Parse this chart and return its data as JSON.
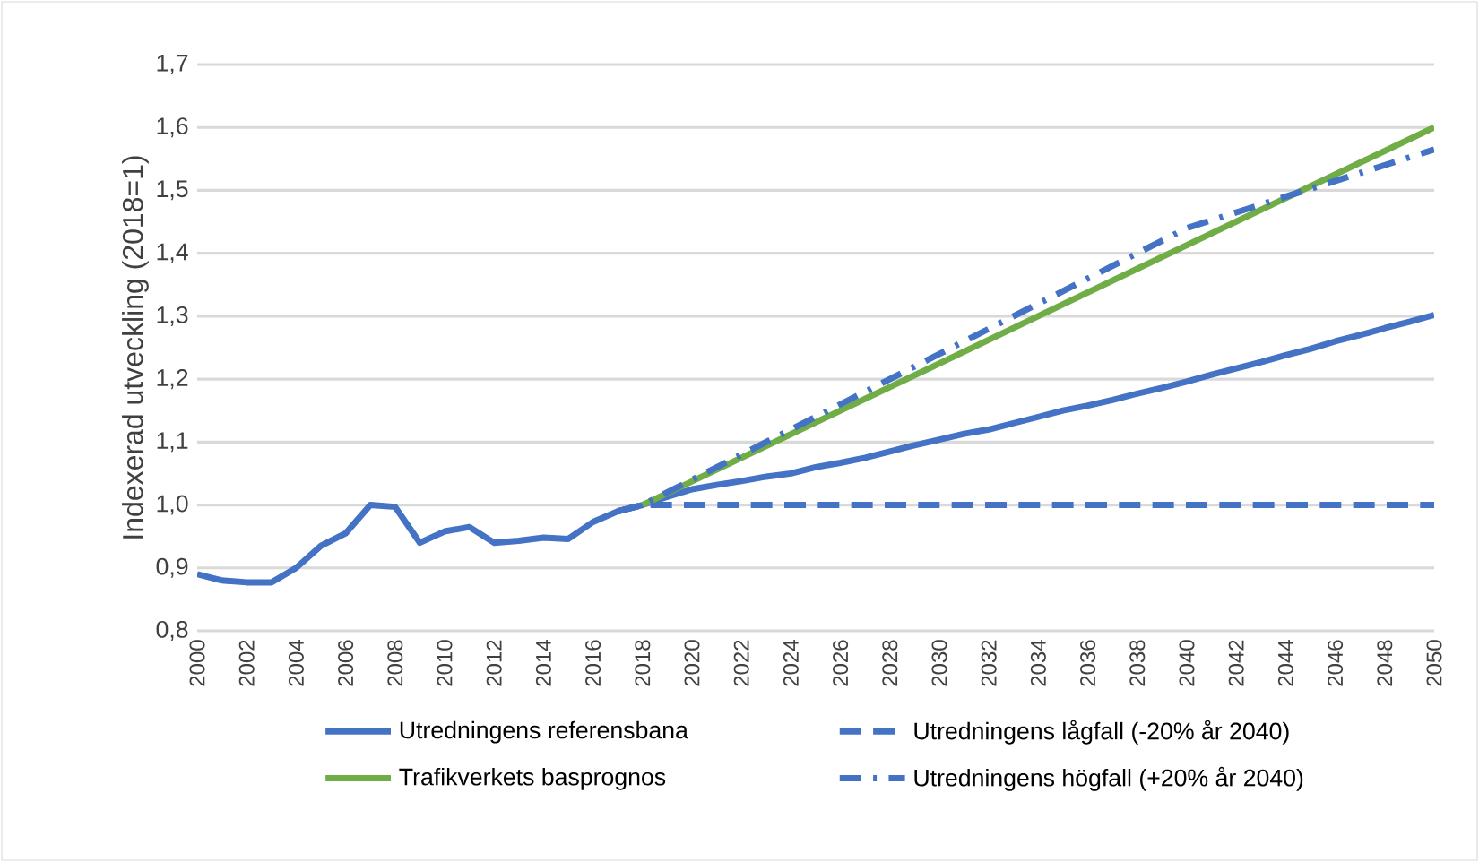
{
  "chart_data": {
    "type": "line",
    "ylabel": "Indexerad utveckling (2018=1)",
    "xlim": [
      2000,
      2050
    ],
    "xticks": [
      2000,
      2002,
      2004,
      2006,
      2008,
      2010,
      2012,
      2014,
      2016,
      2018,
      2020,
      2022,
      2024,
      2026,
      2028,
      2030,
      2032,
      2034,
      2036,
      2038,
      2040,
      2042,
      2044,
      2046,
      2048,
      2050
    ],
    "ylim": [
      0.8,
      1.7
    ],
    "yticks": [
      {
        "value": 0.8,
        "label": "0,8"
      },
      {
        "value": 0.9,
        "label": "0,9"
      },
      {
        "value": 1.0,
        "label": "1,0"
      },
      {
        "value": 1.1,
        "label": "1,1"
      },
      {
        "value": 1.2,
        "label": "1,2"
      },
      {
        "value": 1.3,
        "label": "1,3"
      },
      {
        "value": 1.4,
        "label": "1,4"
      },
      {
        "value": 1.5,
        "label": "1,5"
      },
      {
        "value": 1.6,
        "label": "1,6"
      },
      {
        "value": 1.7,
        "label": "1,7"
      }
    ],
    "grid": "y",
    "legend": "bottom",
    "marker": "none",
    "series": [
      {
        "name": "Utredningens referensbana",
        "color": "#4472c4",
        "line_style": "solid",
        "x": [
          2000,
          2001,
          2002,
          2003,
          2004,
          2005,
          2006,
          2007,
          2008,
          2009,
          2010,
          2011,
          2012,
          2013,
          2014,
          2015,
          2016,
          2017,
          2018,
          2019,
          2020,
          2021,
          2022,
          2023,
          2024,
          2025,
          2026,
          2027,
          2028,
          2029,
          2030,
          2031,
          2032,
          2033,
          2034,
          2035,
          2036,
          2037,
          2038,
          2039,
          2040,
          2041,
          2042,
          2043,
          2044,
          2045,
          2046,
          2047,
          2048,
          2049,
          2050
        ],
        "values": [
          0.89,
          0.88,
          0.877,
          0.877,
          0.9,
          0.935,
          0.955,
          1.0,
          0.997,
          0.94,
          0.958,
          0.965,
          0.94,
          0.943,
          0.948,
          0.946,
          0.973,
          0.99,
          1.0,
          1.013,
          1.025,
          1.032,
          1.038,
          1.045,
          1.05,
          1.06,
          1.067,
          1.075,
          1.085,
          1.095,
          1.104,
          1.113,
          1.12,
          1.13,
          1.14,
          1.15,
          1.158,
          1.167,
          1.177,
          1.186,
          1.196,
          1.207,
          1.217,
          1.227,
          1.238,
          1.248,
          1.26,
          1.27,
          1.281,
          1.291,
          1.302
        ]
      },
      {
        "name": "Utredningens lågfall (-20% år 2040)",
        "color": "#4472c4",
        "line_style": "dashed",
        "x": [
          2017,
          2018,
          2050
        ],
        "values": [
          0.99,
          1.0,
          1.0
        ]
      },
      {
        "name": "Trafikverkets basprognos",
        "color": "#70ad47",
        "line_style": "solid",
        "x": [
          2018,
          2030,
          2040,
          2050
        ],
        "values": [
          1.0,
          1.225,
          1.413,
          1.6
        ]
      },
      {
        "name": "Utredningens högfall (+20% år 2040)",
        "color": "#4472c4",
        "line_style": "dashdot",
        "x": [
          2017,
          2018,
          2030,
          2040,
          2050
        ],
        "values": [
          0.99,
          1.0,
          1.24,
          1.44,
          1.565
        ]
      }
    ]
  }
}
